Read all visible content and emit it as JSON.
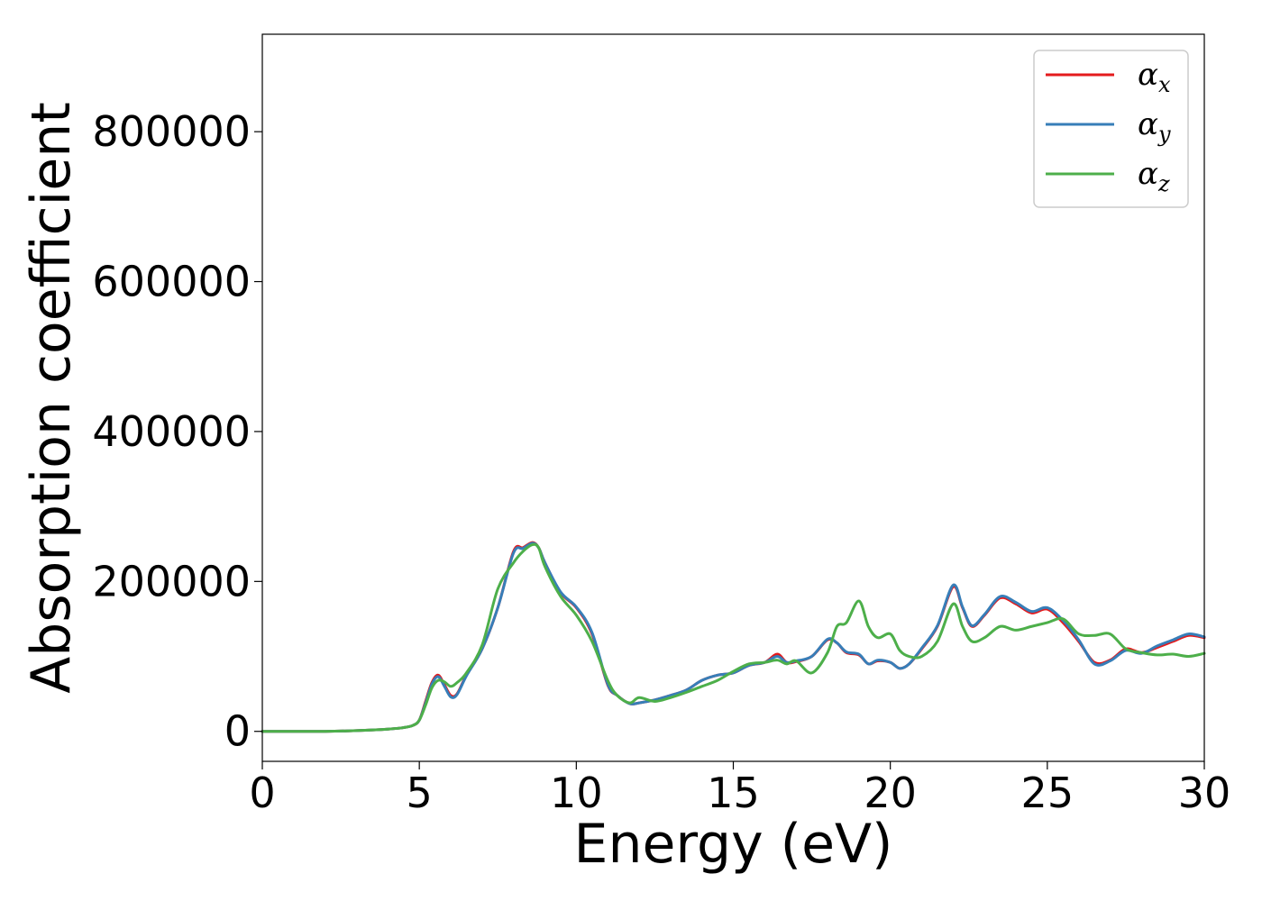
{
  "chart_data": {
    "type": "line",
    "xlabel": "Energy (eV)",
    "ylabel": "Absorption coefficient",
    "xlim": [
      0,
      30
    ],
    "ylim": [
      -40000,
      930000
    ],
    "xticks": [
      0,
      5,
      10,
      15,
      20,
      25,
      30
    ],
    "yticks": [
      0,
      200000,
      400000,
      600000,
      800000
    ],
    "grid": false,
    "legend_position": "top-right",
    "series": [
      {
        "name": "α_x",
        "symbol": "α",
        "subscript": "x",
        "color": "#e41a1c",
        "x": [
          0,
          1,
          2,
          3,
          4,
          4.5,
          4.8,
          5,
          5.2,
          5.4,
          5.6,
          5.8,
          6,
          6.2,
          6.5,
          7,
          7.5,
          8,
          8.3,
          8.6,
          8.8,
          9,
          9.5,
          10,
          10.5,
          11,
          11.3,
          11.7,
          12,
          12.5,
          13,
          13.5,
          14,
          14.5,
          15,
          15.5,
          16,
          16.4,
          16.7,
          17,
          17.5,
          18,
          18.3,
          18.6,
          19,
          19.3,
          19.6,
          20,
          20.3,
          20.6,
          21,
          21.5,
          22,
          22.3,
          22.6,
          23,
          23.5,
          24,
          24.5,
          25,
          25.5,
          26,
          26.5,
          27,
          27.5,
          28,
          28.5,
          29,
          29.5,
          30
        ],
        "y": [
          0,
          0,
          0,
          1000,
          3000,
          5000,
          8000,
          15000,
          40000,
          65000,
          75000,
          62000,
          48000,
          50000,
          75000,
          110000,
          165000,
          240000,
          245000,
          252000,
          245000,
          225000,
          185000,
          165000,
          130000,
          62000,
          48000,
          37000,
          38000,
          42000,
          48000,
          55000,
          68000,
          75000,
          78000,
          88000,
          92000,
          103000,
          92000,
          93000,
          100000,
          122000,
          118000,
          105000,
          102000,
          90000,
          94000,
          92000,
          84000,
          90000,
          110000,
          140000,
          193000,
          165000,
          140000,
          155000,
          178000,
          170000,
          158000,
          163000,
          145000,
          120000,
          92000,
          95000,
          110000,
          105000,
          112000,
          120000,
          128000,
          125000
        ]
      },
      {
        "name": "α_y",
        "symbol": "α",
        "subscript": "y",
        "color": "#377eb8",
        "x": [
          0,
          1,
          2,
          3,
          4,
          4.5,
          4.8,
          5,
          5.2,
          5.4,
          5.6,
          5.8,
          6,
          6.2,
          6.5,
          7,
          7.5,
          8,
          8.3,
          8.6,
          8.8,
          9,
          9.5,
          10,
          10.5,
          11,
          11.3,
          11.7,
          12,
          12.5,
          13,
          13.5,
          14,
          14.5,
          15,
          15.5,
          16,
          16.4,
          16.7,
          17,
          17.5,
          18,
          18.3,
          18.6,
          19,
          19.3,
          19.6,
          20,
          20.3,
          20.6,
          21,
          21.5,
          22,
          22.3,
          22.6,
          23,
          23.5,
          24,
          24.5,
          25,
          25.5,
          26,
          26.5,
          27,
          27.5,
          28,
          28.5,
          29,
          29.5,
          30
        ],
        "y": [
          0,
          0,
          0,
          1000,
          3000,
          5000,
          8000,
          15000,
          38000,
          63000,
          73000,
          60000,
          46000,
          49000,
          74000,
          110000,
          165000,
          238000,
          244000,
          251000,
          245000,
          225000,
          186000,
          166000,
          132000,
          63000,
          48000,
          37000,
          38000,
          42000,
          48000,
          55000,
          68000,
          75000,
          78000,
          88000,
          92000,
          100000,
          92000,
          94000,
          100000,
          123000,
          118000,
          106000,
          103000,
          90000,
          95000,
          92000,
          84000,
          90000,
          111000,
          141000,
          195000,
          166000,
          141000,
          156000,
          180000,
          172000,
          160000,
          165000,
          148000,
          122000,
          90000,
          94000,
          108000,
          104000,
          114000,
          122000,
          130000,
          126000
        ]
      },
      {
        "name": "α_z",
        "symbol": "α",
        "subscript": "z",
        "color": "#4daf4a",
        "x": [
          0,
          1,
          2,
          3,
          4,
          4.5,
          4.8,
          5,
          5.2,
          5.4,
          5.6,
          5.8,
          6,
          6.2,
          6.5,
          7,
          7.5,
          8,
          8.3,
          8.6,
          8.8,
          9,
          9.5,
          10,
          10.5,
          11,
          11.3,
          11.7,
          12,
          12.5,
          13,
          13.5,
          14,
          14.5,
          15,
          15.5,
          16,
          16.4,
          16.7,
          17,
          17.5,
          18,
          18.3,
          18.6,
          19,
          19.3,
          19.6,
          20,
          20.3,
          20.6,
          21,
          21.5,
          22,
          22.3,
          22.6,
          23,
          23.5,
          24,
          24.5,
          25,
          25.5,
          26,
          26.5,
          27,
          27.5,
          28,
          28.5,
          29,
          29.5,
          30
        ],
        "y": [
          0,
          0,
          0,
          1000,
          3000,
          5000,
          8000,
          15000,
          35000,
          58000,
          68000,
          66000,
          60000,
          65000,
          78000,
          115000,
          190000,
          225000,
          240000,
          249000,
          245000,
          220000,
          180000,
          155000,
          120000,
          68000,
          48000,
          38000,
          45000,
          40000,
          45000,
          52000,
          60000,
          68000,
          80000,
          90000,
          92000,
          95000,
          90000,
          94000,
          78000,
          105000,
          140000,
          145000,
          174000,
          140000,
          125000,
          130000,
          108000,
          100000,
          100000,
          120000,
          170000,
          140000,
          120000,
          125000,
          140000,
          135000,
          140000,
          145000,
          150000,
          130000,
          128000,
          130000,
          110000,
          105000,
          102000,
          103000,
          100000,
          104000
        ]
      }
    ]
  }
}
